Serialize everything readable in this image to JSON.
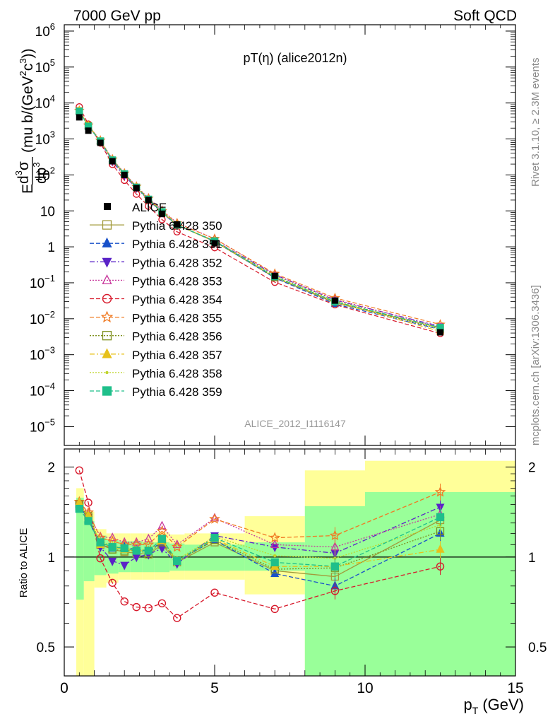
{
  "header": {
    "left": "7000 GeV pp",
    "right": "Soft QCD"
  },
  "chart_data": [
    {
      "type": "scatter",
      "title": "pT(η) (alice2012n)",
      "ylabel_parts": [
        "E",
        "d",
        "3",
        "σ",
        "dp",
        "3",
        "(mu b/(GeV",
        "2",
        "c",
        "3",
        "))"
      ],
      "yscale": "log",
      "ylim": [
        3e-06,
        1500000
      ],
      "xlim": [
        0,
        15
      ],
      "yticks": [
        {
          "value": 1e-05,
          "base": "10",
          "exp": "−5"
        },
        {
          "value": 0.0001,
          "base": "10",
          "exp": "−4"
        },
        {
          "value": 0.001,
          "base": "10",
          "exp": "−3"
        },
        {
          "value": 0.01,
          "base": "10",
          "exp": "−2"
        },
        {
          "value": 0.1,
          "base": "10",
          "exp": "−1"
        },
        {
          "value": 1,
          "base": "1",
          "exp": ""
        },
        {
          "value": 10,
          "base": "10",
          "exp": ""
        },
        {
          "value": 100,
          "base": "10",
          "exp": "2"
        },
        {
          "value": 1000,
          "base": "10",
          "exp": "3"
        },
        {
          "value": 10000,
          "base": "10",
          "exp": "4"
        },
        {
          "value": 100000,
          "base": "10",
          "exp": "5"
        },
        {
          "value": 1000000,
          "base": "10",
          "exp": "6"
        }
      ],
      "x": [
        0.5,
        0.8,
        1.2,
        1.6,
        2.0,
        2.4,
        2.8,
        3.25,
        3.75,
        5.0,
        7.0,
        9.0,
        12.5
      ],
      "data_label": "ALICE",
      "data_values": [
        4000,
        1700,
        780,
        240,
        100,
        43,
        20,
        8.2,
        4.2,
        1.25,
        0.155,
        0.032,
        0.0042
      ],
      "legend_placement": "left",
      "watermark": "ALICE_2012_I1116147"
    },
    {
      "type": "line",
      "ylabel": "Ratio to ALICE",
      "yscale": "log",
      "ylim": [
        0.4,
        2.3
      ],
      "xlim": [
        0,
        15
      ],
      "yticks": [
        {
          "value": 0.5,
          "label": "0.5"
        },
        {
          "value": 1,
          "label": "1"
        },
        {
          "value": 2,
          "label": "2"
        }
      ],
      "xticks": [
        {
          "value": 0,
          "label": "0"
        },
        {
          "value": 5,
          "label": "5"
        },
        {
          "value": 10,
          "label": "10"
        },
        {
          "value": 15,
          "label": "15"
        }
      ],
      "xlabel": "p",
      "xlabel_sub": "T",
      "xlabel_unit": "(GeV)",
      "bands": [
        {
          "x0": 0.4,
          "x1": 0.65,
          "in": [
            0.72,
            1.58
          ],
          "out": [
            0.4,
            1.7
          ]
        },
        {
          "x0": 0.65,
          "x1": 1.0,
          "in": [
            0.83,
            1.32
          ],
          "out": [
            0.4,
            1.42
          ]
        },
        {
          "x0": 1.0,
          "x1": 1.4,
          "in": [
            0.87,
            1.18
          ],
          "out": [
            0.79,
            1.24
          ]
        },
        {
          "x0": 1.4,
          "x1": 1.8,
          "in": [
            0.88,
            1.14
          ],
          "out": [
            0.82,
            1.2
          ]
        },
        {
          "x0": 1.8,
          "x1": 2.2,
          "in": [
            0.89,
            1.13
          ],
          "out": [
            0.84,
            1.2
          ]
        },
        {
          "x0": 2.2,
          "x1": 2.6,
          "in": [
            0.89,
            1.13
          ],
          "out": [
            0.84,
            1.2
          ]
        },
        {
          "x0": 2.6,
          "x1": 3.0,
          "in": [
            0.89,
            1.12
          ],
          "out": [
            0.84,
            1.2
          ]
        },
        {
          "x0": 3.0,
          "x1": 3.5,
          "in": [
            0.89,
            1.12
          ],
          "out": [
            0.84,
            1.21
          ]
        },
        {
          "x0": 3.5,
          "x1": 4.0,
          "in": [
            0.9,
            1.11
          ],
          "out": [
            0.84,
            1.19
          ]
        },
        {
          "x0": 4.0,
          "x1": 6.0,
          "in": [
            0.9,
            1.1
          ],
          "out": [
            0.84,
            1.2
          ]
        },
        {
          "x0": 6.0,
          "x1": 8.0,
          "in": [
            0.9,
            1.12
          ],
          "out": [
            0.75,
            1.37
          ]
        },
        {
          "x0": 8.0,
          "x1": 10.0,
          "in": [
            0.4,
            1.48
          ],
          "out": [
            0.4,
            1.95
          ]
        },
        {
          "x0": 10.0,
          "x1": 15.0,
          "in": [
            0.4,
            1.65
          ],
          "out": [
            0.4,
            2.1
          ]
        }
      ],
      "reference_value": 1
    }
  ],
  "series": [
    {
      "name": "Pythia 6.428 350",
      "color": "#a29a3a",
      "marker": "square-open",
      "dash": "solid",
      "ratios": [
        1.48,
        1.35,
        1.1,
        1.06,
        1.04,
        1.03,
        1.02,
        1.1,
        0.96,
        1.12,
        0.9,
        0.86,
        1.33
      ]
    },
    {
      "name": "Pythia 6.428 351",
      "color": "#1850c9",
      "marker": "triangle-up",
      "dash": "dashed",
      "ratios": [
        1.5,
        1.33,
        1.1,
        1.07,
        1.08,
        1.06,
        1.05,
        1.12,
        0.97,
        1.14,
        0.88,
        0.8,
        1.2
      ]
    },
    {
      "name": "Pythia 6.428 352",
      "color": "#5a23c7",
      "marker": "triangle-down",
      "dash": "dashdot",
      "ratios": [
        1.47,
        1.36,
        1.08,
        0.97,
        0.94,
        1.0,
        1.02,
        1.07,
        0.95,
        1.18,
        1.08,
        1.03,
        1.47
      ]
    },
    {
      "name": "Pythia 6.428 353",
      "color": "#c8379c",
      "marker": "triangle-open",
      "dash": "dotted",
      "ratios": [
        1.51,
        1.4,
        1.17,
        1.16,
        1.12,
        1.12,
        1.15,
        1.27,
        1.1,
        1.35,
        1.1,
        1.08,
        1.39
      ]
    },
    {
      "name": "Pythia 6.428 354",
      "color": "#d7182a",
      "marker": "circle-open",
      "dash": "dashed",
      "ratios": [
        1.95,
        1.52,
        0.99,
        0.82,
        0.71,
        0.68,
        0.675,
        0.7,
        0.625,
        0.76,
        0.67,
        0.77,
        0.93
      ]
    },
    {
      "name": "Pythia 6.428 355",
      "color": "#f07b24",
      "marker": "star",
      "dash": "dashed",
      "ratios": [
        1.53,
        1.41,
        1.16,
        1.13,
        1.1,
        1.1,
        1.1,
        1.22,
        1.08,
        1.34,
        1.16,
        1.18,
        1.65
      ]
    },
    {
      "name": "Pythia 6.428 356",
      "color": "#7d8f1c",
      "marker": "square-open",
      "dash": "dotted",
      "ratios": [
        1.5,
        1.37,
        1.12,
        1.06,
        1.05,
        1.05,
        1.03,
        1.12,
        0.97,
        1.14,
        0.91,
        0.92,
        1.22
      ]
    },
    {
      "name": "Pythia 6.428 357",
      "color": "#e7c11a",
      "marker": "triangle-up",
      "dash": "dashdot",
      "ratios": [
        1.52,
        1.38,
        1.1,
        1.08,
        1.06,
        1.05,
        1.05,
        1.13,
        0.97,
        1.15,
        0.93,
        0.93,
        1.06
      ]
    },
    {
      "name": "Pythia 6.428 358",
      "color": "#bfd42a",
      "marker": "dot",
      "dash": "dotted",
      "ratios": [
        1.49,
        1.36,
        1.13,
        1.09,
        1.07,
        1.06,
        1.06,
        1.14,
        0.98,
        1.17,
        1.01,
        0.99,
        1.28
      ]
    },
    {
      "name": "Pythia 6.428 359",
      "color": "#1fbf8a",
      "marker": "square-filled",
      "dash": "dashed",
      "ratios": [
        1.45,
        1.32,
        1.12,
        1.08,
        1.07,
        1.05,
        1.05,
        1.15,
        0.97,
        1.16,
        0.96,
        0.93,
        1.36
      ]
    }
  ],
  "side_labels": {
    "rivet": "Rivet 3.1.10, ≥ 2.3M events",
    "mcplots": "mcplots.cern.ch [arXiv:1306.3436]"
  }
}
